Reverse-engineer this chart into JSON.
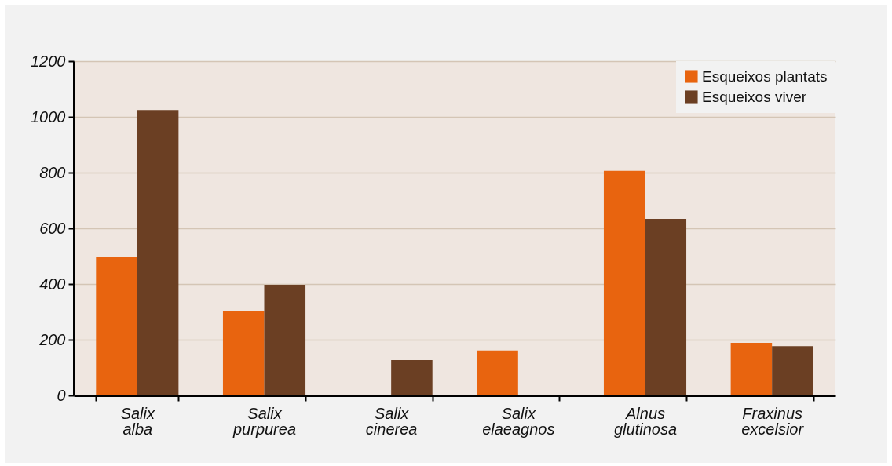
{
  "chart_data": {
    "type": "bar",
    "categories": [
      "Salix alba",
      "Salix purpurea",
      "Salix cinerea",
      "Salix elaeagnos",
      "Alnus glutinosa",
      "Fraxinus excelsior"
    ],
    "series": [
      {
        "name": "Esqueixos plantats",
        "color": "#e8640f",
        "values": [
          497,
          304,
          2,
          161,
          806,
          189
        ]
      },
      {
        "name": "Esqueixos viver",
        "color": "#6b3f23",
        "values": [
          1025,
          397,
          127,
          2,
          634,
          177
        ]
      }
    ],
    "ylim": [
      0,
      1200
    ],
    "yticks": [
      0,
      200,
      400,
      600,
      800,
      1000,
      1200
    ],
    "grid": "y",
    "legend": "top right"
  }
}
